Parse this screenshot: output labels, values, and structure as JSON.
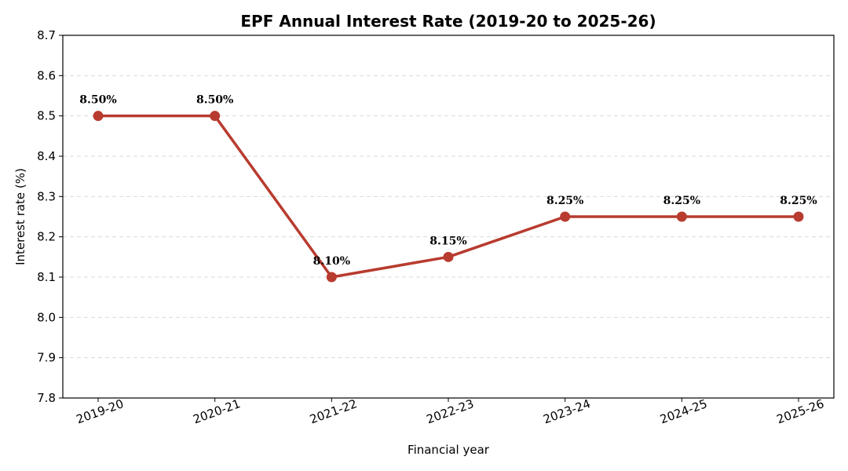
{
  "chart_data": {
    "type": "line",
    "title": "EPF Annual Interest Rate (2019-20 to 2025-26)",
    "xlabel": "Financial year",
    "ylabel": "Interest rate (%)",
    "categories": [
      "2019-20",
      "2020-21",
      "2021-22",
      "2022-23",
      "2023-24",
      "2024-25",
      "2025-26"
    ],
    "series": [
      {
        "values": [
          8.5,
          8.5,
          8.1,
          8.15,
          8.25,
          8.25,
          8.25
        ],
        "data_labels": [
          "8.50%",
          "8.50%",
          "8.10%",
          "8.15%",
          "8.25%",
          "8.25%",
          "8.25%"
        ],
        "color": "#b83b2f"
      }
    ],
    "ylim": [
      7.8,
      8.7
    ],
    "yticks": [
      7.8,
      7.9,
      8.0,
      8.1,
      8.2,
      8.3,
      8.4,
      8.5,
      8.6,
      8.7
    ],
    "ytick_labels": [
      "7.8",
      "7.9",
      "8.0",
      "8.1",
      "8.2",
      "8.3",
      "8.4",
      "8.5",
      "8.6",
      "8.7"
    ],
    "grid": "y-dashed",
    "legend": "none"
  }
}
